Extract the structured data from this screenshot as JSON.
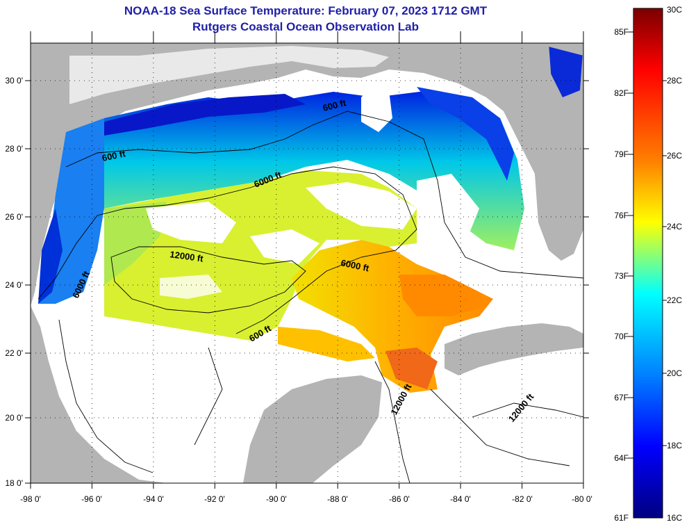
{
  "title": "NOAA-18 Sea Surface Temperature:  February 07, 2023 1712 GMT",
  "subtitle": "Rutgers Coastal Ocean Observation Lab",
  "map": {
    "lon_ticks": [
      "-98 0'",
      "-96 0'",
      "-94 0'",
      "-92 0'",
      "-90 0'",
      "-88 0'",
      "-86 0'",
      "-84 0'",
      "-82 0'",
      "-80 0'"
    ],
    "lat_ticks": [
      "30 0'",
      "28 0'",
      "26 0'",
      "24 0'",
      "22 0'",
      "20 0'",
      "18 0'"
    ],
    "contour_labels": [
      {
        "text": "600 ft"
      },
      {
        "text": "600 ft"
      },
      {
        "text": "6000 ft"
      },
      {
        "text": "12000 ft"
      },
      {
        "text": "6000 ft"
      },
      {
        "text": "6000 ft"
      },
      {
        "text": "600 ft"
      },
      {
        "text": "12000 ft"
      },
      {
        "text": "12000 ft"
      }
    ],
    "land_color": "#b4b4b4",
    "cloud_color": "#ffffff"
  },
  "colorbar": {
    "fahrenheit_labels": [
      "85F",
      "82F",
      "79F",
      "76F",
      "73F",
      "70F",
      "67F",
      "64F",
      "61F"
    ],
    "celsius_labels": [
      "30C",
      "28C",
      "26C",
      "24C",
      "22C",
      "20C",
      "18C",
      "16C"
    ],
    "colors": [
      "#800000",
      "#ff0000",
      "#ff8000",
      "#ffff00",
      "#00ffff",
      "#0080ff",
      "#0000ff",
      "#000080"
    ]
  }
}
